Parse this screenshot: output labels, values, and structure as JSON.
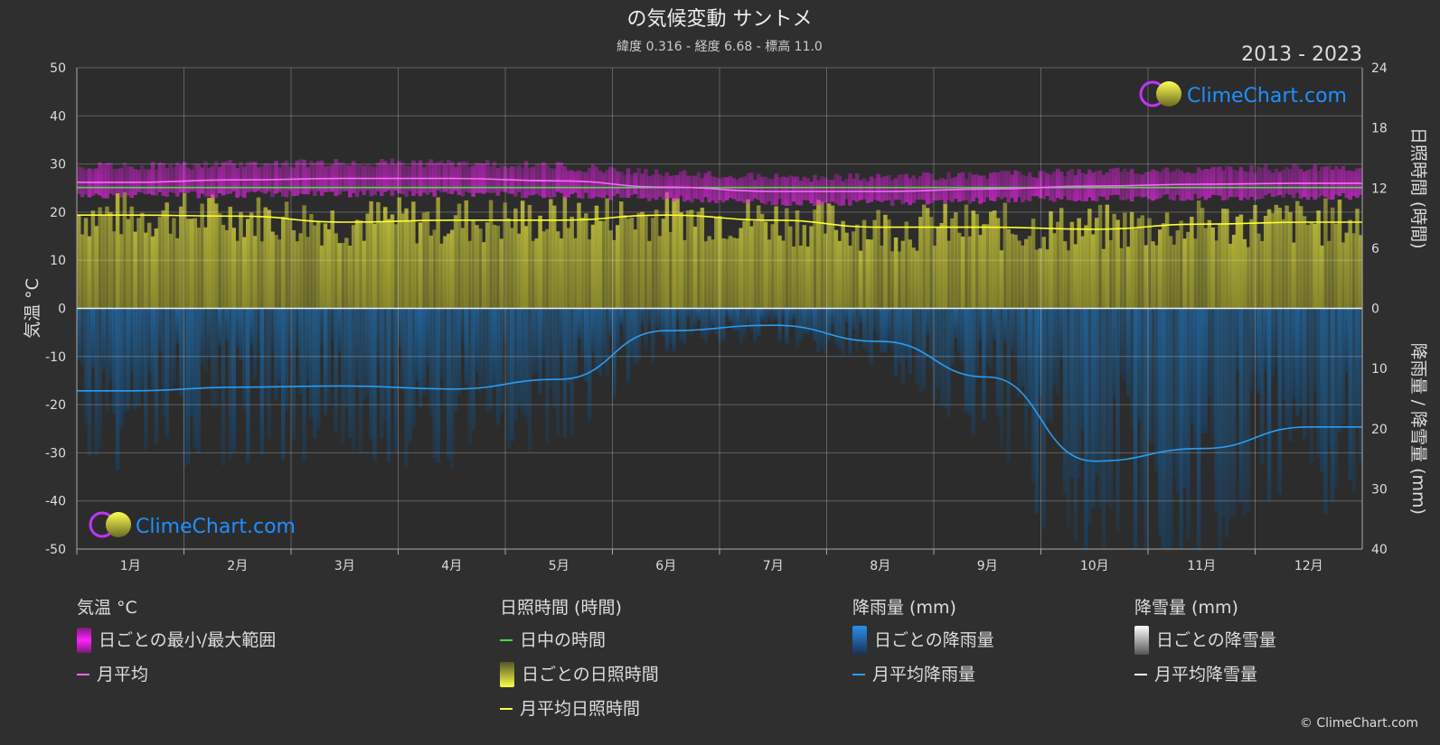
{
  "title": "の気候変動 サントメ",
  "subtitle": "緯度 0.316 - 経度 6.68 - 標高 11.0",
  "year_range": "2013 - 2023",
  "brand": "ClimeChart.com",
  "copyright": "© ClimeChart.com",
  "colors": {
    "background": "#2f2f2f",
    "temp_range": "#e020e0",
    "temp_avg": "#ff66ff",
    "daylight": "#44dd44",
    "sunshine_fill": "#a9a832",
    "sunshine_avg": "#ffff33",
    "rain_fill": "#1e6aa8",
    "rain_avg": "#2a9df4",
    "snow_avg": "#ffffff",
    "brand_text": "#1e90ff"
  },
  "chart_data": {
    "type": "line",
    "months": [
      "1月",
      "2月",
      "3月",
      "4月",
      "5月",
      "6月",
      "7月",
      "8月",
      "9月",
      "10月",
      "11月",
      "12月"
    ],
    "axes": {
      "left": {
        "label": "気温 °C",
        "min": -50,
        "max": 50,
        "ticks": [
          "50",
          "40",
          "30",
          "20",
          "10",
          "0",
          "-10",
          "-20",
          "-30",
          "-40",
          "-50"
        ]
      },
      "right_top": {
        "label": "日照時間 (時間)",
        "min": 0,
        "max": 24,
        "ticks": [
          "24",
          "18",
          "12",
          "6",
          "0"
        ]
      },
      "right_bottom": {
        "label": "降雨量 / 降雪量 (mm)",
        "min": 0,
        "max": 40,
        "ticks": [
          "0",
          "10",
          "20",
          "30",
          "40"
        ]
      }
    },
    "grid": true,
    "series": [
      {
        "name": "日ごとの最小/最大範囲",
        "unit": "°C",
        "min": [
          23.5,
          23.7,
          23.8,
          23.8,
          23.6,
          22.8,
          22.0,
          22.0,
          22.5,
          22.9,
          23.1,
          23.3
        ],
        "max": [
          29.5,
          30.0,
          30.3,
          30.2,
          29.6,
          28.0,
          27.2,
          27.2,
          27.8,
          28.3,
          28.8,
          29.2
        ]
      },
      {
        "name": "月平均",
        "unit": "°C",
        "values": [
          26.2,
          26.7,
          27.0,
          27.0,
          26.5,
          25.2,
          24.3,
          24.3,
          24.8,
          25.4,
          25.8,
          26.0
        ]
      },
      {
        "name": "日中の時間",
        "unit": "時間",
        "values": [
          12.05,
          12.05,
          12.05,
          12.05,
          12.05,
          12.05,
          12.05,
          12.05,
          12.05,
          12.05,
          12.05,
          12.05
        ]
      },
      {
        "name": "日ごとの日照時間",
        "unit": "時間",
        "values": [
          9.3,
          9.2,
          8.6,
          8.8,
          8.8,
          9.3,
          8.8,
          8.1,
          8.1,
          7.9,
          8.4,
          8.6
        ]
      },
      {
        "name": "月平均日照時間",
        "unit": "時間",
        "values": [
          9.3,
          9.2,
          8.6,
          8.8,
          8.8,
          9.3,
          8.8,
          8.1,
          8.1,
          7.9,
          8.4,
          8.6
        ]
      },
      {
        "name": "日ごとの降雨量",
        "unit": "mm",
        "values": [
          13.7,
          13.1,
          12.9,
          13.4,
          11.8,
          3.7,
          2.8,
          5.5,
          11.4,
          25.4,
          23.3,
          19.7
        ]
      },
      {
        "name": "月平均降雨量",
        "unit": "mm",
        "values": [
          13.7,
          13.1,
          12.9,
          13.4,
          11.8,
          3.7,
          2.8,
          5.5,
          11.4,
          25.4,
          23.3,
          19.7
        ]
      },
      {
        "name": "日ごとの降雪量",
        "unit": "mm",
        "values": [
          0,
          0,
          0,
          0,
          0,
          0,
          0,
          0,
          0,
          0,
          0,
          0
        ]
      },
      {
        "name": "月平均降雪量",
        "unit": "mm",
        "values": [
          0,
          0,
          0,
          0,
          0,
          0,
          0,
          0,
          0,
          0,
          0,
          0
        ]
      }
    ]
  },
  "legend": {
    "temperature": {
      "heading": "気温 °C",
      "items": [
        "日ごとの最小/最大範囲",
        "月平均"
      ]
    },
    "sunshine": {
      "heading": "日照時間 (時間)",
      "items": [
        "日中の時間",
        "日ごとの日照時間",
        "月平均日照時間"
      ]
    },
    "rain": {
      "heading": "降雨量 (mm)",
      "items": [
        "日ごとの降雨量",
        "月平均降雨量"
      ]
    },
    "snow": {
      "heading": "降雪量 (mm)",
      "items": [
        "日ごとの降雪量",
        "月平均降雪量"
      ]
    }
  }
}
